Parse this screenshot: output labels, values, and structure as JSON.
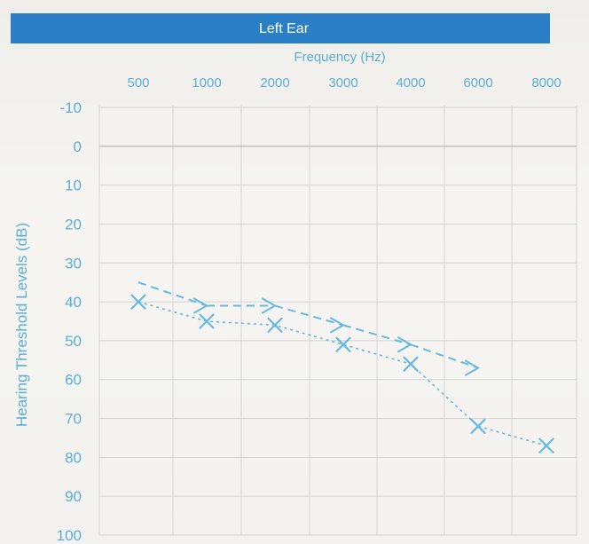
{
  "chart_data": {
    "type": "line",
    "title": "Left Ear",
    "xlabel": "Frequency (Hz)",
    "ylabel": "Hearing Threshold Levels (dB)",
    "categories": [
      "500",
      "1000",
      "2000",
      "3000",
      "4000",
      "6000",
      "8000"
    ],
    "y_ticks": [
      "-10",
      "0",
      "10",
      "20",
      "30",
      "40",
      "50",
      "60",
      "70",
      "80",
      "90",
      "100"
    ],
    "ylim": [
      -10,
      100
    ],
    "y_inverted": true,
    "x_axis_position": "top",
    "grid": true,
    "series": [
      {
        "marker": "arrow",
        "line": "dashed",
        "points": [
          {
            "x": "500",
            "y": 35
          },
          {
            "x": "1000",
            "y": 41
          },
          {
            "x": "2000",
            "y": 41
          },
          {
            "x": "3000",
            "y": 46
          },
          {
            "x": "4000",
            "y": 51
          },
          {
            "x": "6000",
            "y": 57
          }
        ]
      },
      {
        "marker": "x",
        "line": "dotted",
        "points": [
          {
            "x": "500",
            "y": 40
          },
          {
            "x": "1000",
            "y": 45
          },
          {
            "x": "2000",
            "y": 46
          },
          {
            "x": "3000",
            "y": 51
          },
          {
            "x": "4000",
            "y": 56
          },
          {
            "x": "6000",
            "y": 72
          },
          {
            "x": "8000",
            "y": 77
          }
        ]
      }
    ],
    "colors": {
      "title_bar": "#2a7fc6",
      "title_text": "#ffffff",
      "axis_text": "#5aaed6",
      "series": "#67b8e2",
      "grid": "#d3d3d3"
    }
  }
}
